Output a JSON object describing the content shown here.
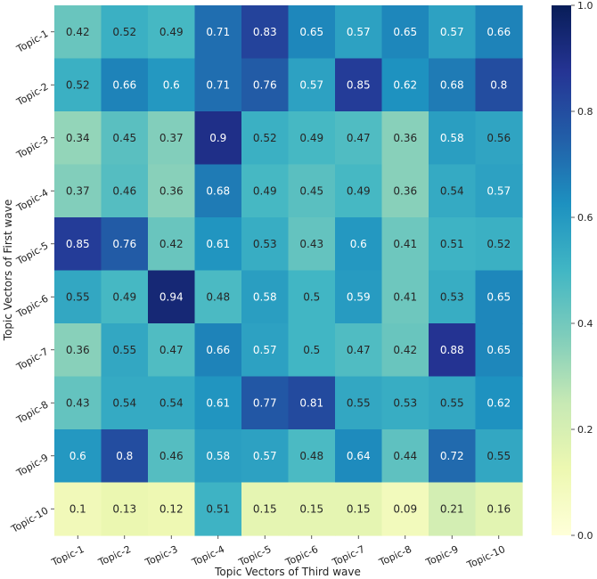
{
  "chart_data": {
    "type": "heatmap",
    "title": "",
    "xlabel": "Topic Vectors of Third wave",
    "ylabel": "Topic Vectors of First wave",
    "x_categories": [
      "Topic-1",
      "Topic-2",
      "Topic-3",
      "Topic-4",
      "Topic-5",
      "Topic-6",
      "Topic-7",
      "Topic-8",
      "Topic-9",
      "Topic-10"
    ],
    "y_categories": [
      "Topic-1",
      "Topic-2",
      "Topic-3",
      "Topic-4",
      "Topic-5",
      "Topic-6",
      "Topic-7",
      "Topic-8",
      "Topic-9",
      "Topic-10"
    ],
    "values": [
      [
        0.42,
        0.52,
        0.49,
        0.71,
        0.83,
        0.65,
        0.57,
        0.65,
        0.57,
        0.66
      ],
      [
        0.52,
        0.66,
        0.6,
        0.71,
        0.76,
        0.57,
        0.85,
        0.62,
        0.68,
        0.8
      ],
      [
        0.34,
        0.45,
        0.37,
        0.9,
        0.52,
        0.49,
        0.47,
        0.36,
        0.58,
        0.56
      ],
      [
        0.37,
        0.46,
        0.36,
        0.68,
        0.49,
        0.45,
        0.49,
        0.36,
        0.54,
        0.57
      ],
      [
        0.85,
        0.76,
        0.42,
        0.61,
        0.53,
        0.43,
        0.6,
        0.41,
        0.51,
        0.52
      ],
      [
        0.55,
        0.49,
        0.94,
        0.48,
        0.58,
        0.5,
        0.59,
        0.41,
        0.53,
        0.65
      ],
      [
        0.36,
        0.55,
        0.47,
        0.66,
        0.57,
        0.5,
        0.47,
        0.42,
        0.88,
        0.65
      ],
      [
        0.43,
        0.54,
        0.54,
        0.61,
        0.77,
        0.81,
        0.55,
        0.53,
        0.55,
        0.62
      ],
      [
        0.6,
        0.8,
        0.46,
        0.58,
        0.57,
        0.48,
        0.64,
        0.44,
        0.72,
        0.55
      ],
      [
        0.1,
        0.13,
        0.12,
        0.51,
        0.15,
        0.15,
        0.15,
        0.09,
        0.21,
        0.16
      ]
    ],
    "colorscale": "YlGnBu",
    "colorbar": {
      "range": [
        0.0,
        1.0
      ],
      "ticks": [
        0.0,
        0.2,
        0.4,
        0.6,
        0.8,
        1.0
      ]
    }
  }
}
